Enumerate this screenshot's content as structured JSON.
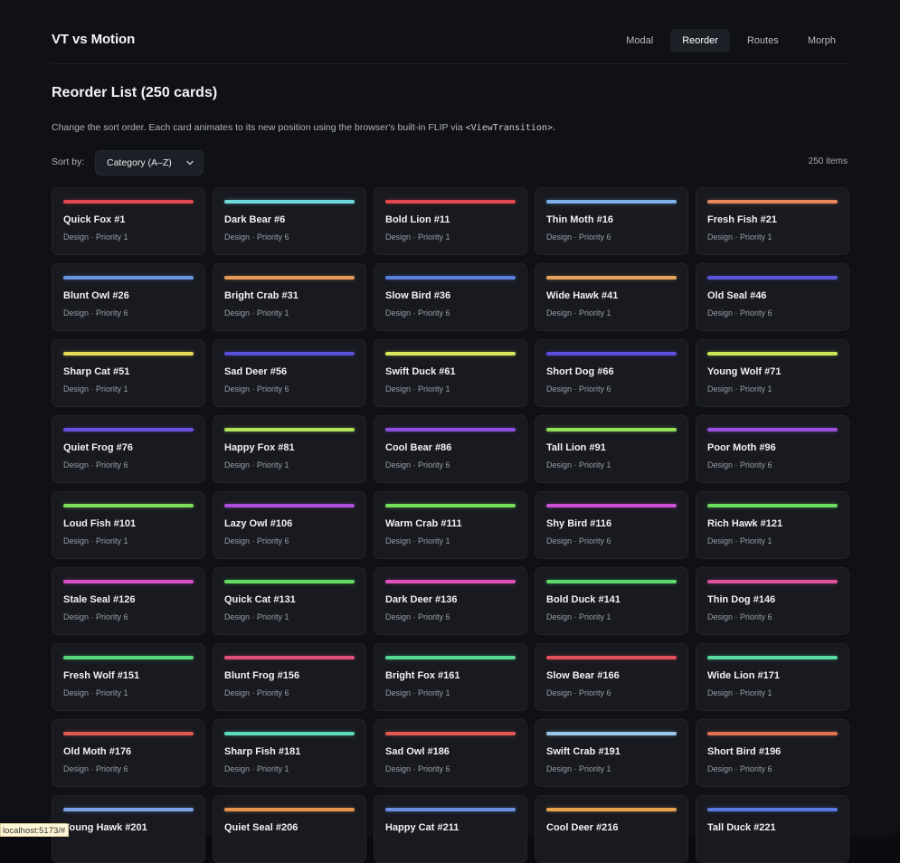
{
  "app": {
    "title": "VT vs Motion"
  },
  "nav": [
    {
      "label": "Modal",
      "active": false
    },
    {
      "label": "Reorder",
      "active": true
    },
    {
      "label": "Routes",
      "active": false
    },
    {
      "label": "Morph",
      "active": false
    }
  ],
  "page": {
    "title": "Reorder List (250 cards)",
    "description_pre": "Change the sort order. Each card animates to its new position using the browser's built-in FLIP via ",
    "description_code": "<ViewTransition>",
    "description_post": "."
  },
  "sort": {
    "label": "Sort by:",
    "selected": "Category (A–Z)",
    "chevron_icon": "chevron-down-icon",
    "count_text": "250 items"
  },
  "cards": [
    {
      "name": "Quick Fox #1",
      "meta": "Design · Priority 1",
      "color": "#e0484f"
    },
    {
      "name": "Dark Bear #6",
      "meta": "Design · Priority 6",
      "color": "#6fd8db"
    },
    {
      "name": "Bold Lion #11",
      "meta": "Design · Priority 1",
      "color": "#e0484f"
    },
    {
      "name": "Thin Moth #16",
      "meta": "Design · Priority 6",
      "color": "#7cb0e6"
    },
    {
      "name": "Fresh Fish #21",
      "meta": "Design · Priority 1",
      "color": "#e6875c"
    },
    {
      "name": "Blunt Owl #26",
      "meta": "Design · Priority 6",
      "color": "#6b95e0"
    },
    {
      "name": "Bright Crab #31",
      "meta": "Design · Priority 1",
      "color": "#e89a55"
    },
    {
      "name": "Slow Bird #36",
      "meta": "Design · Priority 6",
      "color": "#5b7fe0"
    },
    {
      "name": "Wide Hawk #41",
      "meta": "Design · Priority 1",
      "color": "#e8a35a"
    },
    {
      "name": "Old Seal #46",
      "meta": "Design · Priority 6",
      "color": "#5a55d8"
    },
    {
      "name": "Sharp Cat #51",
      "meta": "Design · Priority 1",
      "color": "#e6dc5a"
    },
    {
      "name": "Sad Deer #56",
      "meta": "Design · Priority 6",
      "color": "#5a4fd9"
    },
    {
      "name": "Swift Duck #61",
      "meta": "Design · Priority 1",
      "color": "#d9e85a"
    },
    {
      "name": "Short Dog #66",
      "meta": "Design · Priority 6",
      "color": "#5c4ede"
    },
    {
      "name": "Young Wolf #71",
      "meta": "Design · Priority 1",
      "color": "#c8e855"
    },
    {
      "name": "Quiet Frog #76",
      "meta": "Design · Priority 6",
      "color": "#6a4fe0"
    },
    {
      "name": "Happy Fox #81",
      "meta": "Design · Priority 1",
      "color": "#b0e45a"
    },
    {
      "name": "Cool Bear #86",
      "meta": "Design · Priority 6",
      "color": "#8c4fe0"
    },
    {
      "name": "Tall Lion #91",
      "meta": "Design · Priority 1",
      "color": "#92e05a"
    },
    {
      "name": "Poor Moth #96",
      "meta": "Design · Priority 6",
      "color": "#9a4fe0"
    },
    {
      "name": "Loud Fish #101",
      "meta": "Design · Priority 1",
      "color": "#7fdf5a"
    },
    {
      "name": "Lazy Owl #106",
      "meta": "Design · Priority 6",
      "color": "#b04fdc"
    },
    {
      "name": "Warm Crab #111",
      "meta": "Design · Priority 1",
      "color": "#74dd5c"
    },
    {
      "name": "Shy Bird #116",
      "meta": "Design · Priority 6",
      "color": "#c84fd6"
    },
    {
      "name": "Rich Hawk #121",
      "meta": "Design · Priority 1",
      "color": "#6cdc5e"
    },
    {
      "name": "Stale Seal #126",
      "meta": "Design · Priority 6",
      "color": "#d84fc8"
    },
    {
      "name": "Quick Cat #131",
      "meta": "Design · Priority 1",
      "color": "#62db62"
    },
    {
      "name": "Dark Deer #136",
      "meta": "Design · Priority 6",
      "color": "#de4fb8"
    },
    {
      "name": "Bold Duck #141",
      "meta": "Design · Priority 1",
      "color": "#5cd96c"
    },
    {
      "name": "Thin Dog #146",
      "meta": "Design · Priority 6",
      "color": "#e04f9c"
    },
    {
      "name": "Fresh Wolf #151",
      "meta": "Design · Priority 1",
      "color": "#58d87c"
    },
    {
      "name": "Blunt Frog #156",
      "meta": "Design · Priority 6",
      "color": "#e04f78"
    },
    {
      "name": "Bright Fox #161",
      "meta": "Design · Priority 1",
      "color": "#56d890"
    },
    {
      "name": "Slow Bear #166",
      "meta": "Design · Priority 6",
      "color": "#e04f5a"
    },
    {
      "name": "Wide Lion #171",
      "meta": "Design · Priority 1",
      "color": "#58daa4"
    },
    {
      "name": "Old Moth #176",
      "meta": "Design · Priority 6",
      "color": "#e05a4f"
    },
    {
      "name": "Sharp Fish #181",
      "meta": "Design · Priority 1",
      "color": "#5adcb8"
    },
    {
      "name": "Sad Owl #186",
      "meta": "Design · Priority 6",
      "color": "#e0584f"
    },
    {
      "name": "Swift Crab #191",
      "meta": "Design · Priority 1",
      "color": "#9bc8ea"
    },
    {
      "name": "Short Bird #196",
      "meta": "Design · Priority 6",
      "color": "#e0704f"
    },
    {
      "name": "Young Hawk #201",
      "meta": "",
      "color": "#7aa2e4"
    },
    {
      "name": "Quiet Seal #206",
      "meta": "",
      "color": "#e8924f"
    },
    {
      "name": "Happy Cat #211",
      "meta": "",
      "color": "#6a8ee2"
    },
    {
      "name": "Cool Deer #216",
      "meta": "",
      "color": "#e8a04f"
    },
    {
      "name": "Tall Duck #221",
      "meta": "",
      "color": "#5a78e0"
    }
  ],
  "status_bar": {
    "url": "localhost:5173/#"
  }
}
